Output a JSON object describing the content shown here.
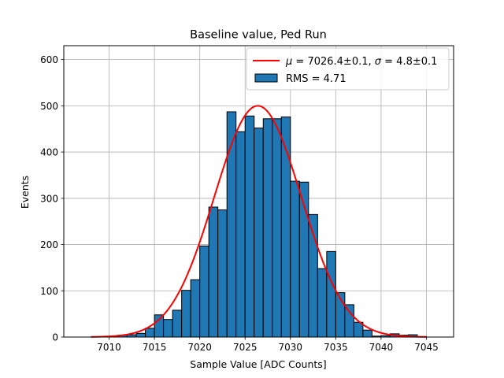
{
  "chart_data": {
    "type": "bar",
    "title": "Baseline value, Ped Run",
    "xlabel": "Sample Value [ADC Counts]",
    "ylabel": "Events",
    "xlim": [
      7005,
      7048
    ],
    "ylim": [
      0,
      630
    ],
    "x_ticks": [
      7010,
      7015,
      7020,
      7025,
      7030,
      7035,
      7040,
      7045
    ],
    "y_ticks": [
      0,
      100,
      200,
      300,
      400,
      500,
      600
    ],
    "grid": true,
    "legend_position": "top-right",
    "series": [
      {
        "name": "RMS = 4.71",
        "kind": "histogram",
        "color": "#1f77b4",
        "edgecolor": "#000000",
        "bin_edges": [
          7008,
          7009,
          7010,
          7011,
          7012,
          7013,
          7014,
          7015,
          7016,
          7017,
          7018,
          7019,
          7020,
          7021,
          7022,
          7023,
          7024,
          7025,
          7026,
          7027,
          7028,
          7029,
          7030,
          7031,
          7032,
          7033,
          7034,
          7035,
          7036,
          7037,
          7038,
          7039,
          7040,
          7041,
          7042,
          7043,
          7044,
          7045
        ],
        "counts": [
          0,
          1,
          2,
          4,
          5,
          8,
          19,
          48,
          38,
          58,
          101,
          124,
          197,
          281,
          275,
          487,
          444,
          478,
          452,
          472,
          472,
          476,
          337,
          335,
          265,
          148,
          185,
          96,
          70,
          32,
          15,
          2,
          3,
          7,
          4,
          5,
          1
        ]
      },
      {
        "name": "fit",
        "legend_label": "$\\mu=7026.4\\pm0.1$, $\\sigma=4.8\\pm0.1$",
        "kind": "gaussian",
        "color": "#ff0000",
        "mu": 7026.4,
        "sigma": 4.8,
        "amplitude": 500,
        "x_range": [
          7008,
          7045
        ]
      }
    ],
    "legend": [
      {
        "type": "line",
        "color": "#ff0000",
        "text_parts": [
          "μ",
          " = 7026.4±0.1, ",
          "σ",
          " = 4.8±0.1"
        ]
      },
      {
        "type": "patch",
        "color": "#1f77b4",
        "text": "RMS = 4.71"
      }
    ]
  }
}
